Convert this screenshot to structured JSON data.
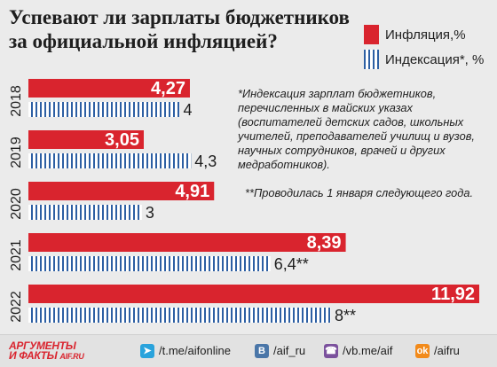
{
  "title": "Успевают ли зарплаты бюджетников за официальной инфляцией?",
  "legend": {
    "inflation": "Инфляция,%",
    "indexation": "Индексация*, %"
  },
  "notes": {
    "footnote1": "*Индексация зарплат бюджетников, перечисленных в майских указах (воспитателей детских садов, школьных учителей, преподавателей училищ и вузов, научных сотрудников, врачей и других медработников).",
    "footnote2": "**Проводилась 1 января следующего года."
  },
  "chart_data": {
    "type": "bar",
    "orientation": "horizontal",
    "categories": [
      "2018",
      "2019",
      "2020",
      "2021",
      "2022"
    ],
    "series": [
      {
        "name": "Инфляция,%",
        "color": "#d9242e",
        "values": [
          4.27,
          3.05,
          4.91,
          8.39,
          11.92
        ],
        "labels": [
          "4,27",
          "3,05",
          "4,91",
          "8,39",
          "11,92"
        ]
      },
      {
        "name": "Индексация*, %",
        "color": "#2d5fa3",
        "values": [
          4,
          4.3,
          3,
          6.4,
          8
        ],
        "labels": [
          "4",
          "4,3",
          "3",
          "6,4**",
          "8**"
        ]
      }
    ]
  },
  "footer": {
    "logo_line1": "АРГУМЕНТЫ",
    "logo_line2": "И ФАКТЫ",
    "logo_domain": "AIF.RU",
    "links": [
      {
        "icon": "telegram-icon",
        "text": "/t.me/aifonline",
        "color": "#2aa3dc"
      },
      {
        "icon": "vk-icon",
        "text": "/aif_ru",
        "color": "#4a76a8"
      },
      {
        "icon": "viber-icon",
        "text": "/vb.me/aif",
        "color": "#7b519d"
      },
      {
        "icon": "ok-icon",
        "text": "/aifru",
        "color": "#f28a1a"
      }
    ]
  }
}
